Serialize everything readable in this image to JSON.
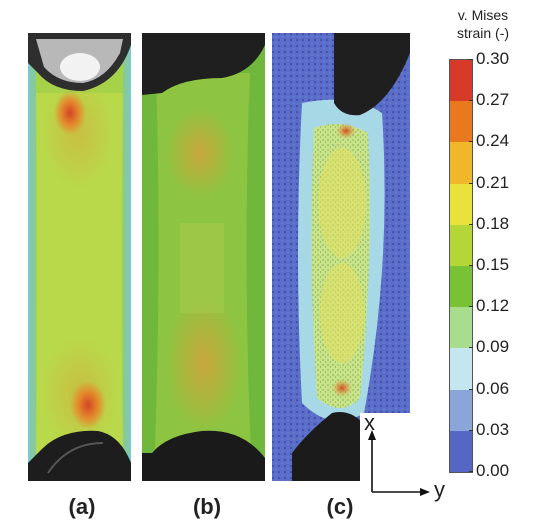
{
  "colorbar": {
    "title_line1": "v. Mises",
    "title_line2": "strain (-)",
    "ticks": [
      "0.30",
      "0.27",
      "0.24",
      "0.21",
      "0.18",
      "0.15",
      "0.12",
      "0.09",
      "0.06",
      "0.03",
      "0.00"
    ],
    "colors": [
      "#d83a2a",
      "#e8791f",
      "#f0b72a",
      "#e9e23c",
      "#b4d636",
      "#79c135",
      "#a9dd8e",
      "#c4e6ef",
      "#8aa6d8",
      "#5566c4",
      "#3b3aa8"
    ]
  },
  "panels": {
    "a_label": "(a)",
    "b_label": "(b)",
    "c_label": "(c)"
  },
  "axes": {
    "x_label": "x",
    "y_label": "y"
  }
}
